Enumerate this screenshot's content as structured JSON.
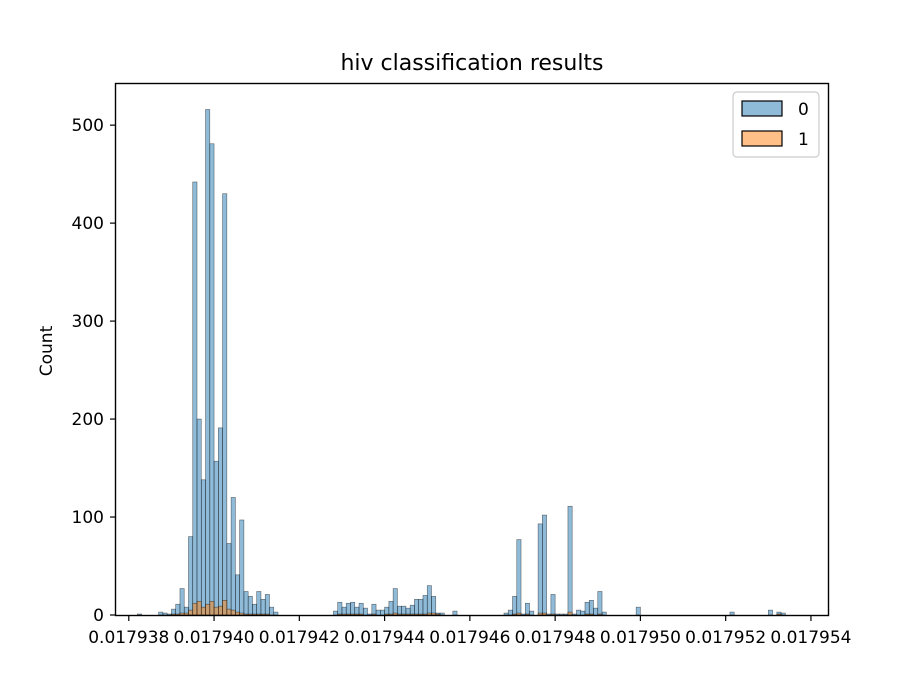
{
  "chart_data": {
    "type": "histogram",
    "title": "hiv classification results",
    "xlabel": "",
    "ylabel": "Count",
    "xlim": [
      0.0179377,
      0.0179544
    ],
    "ylim": [
      0,
      542
    ],
    "x_ticks": [
      0.017938,
      0.01794,
      0.017942,
      0.017944,
      0.017946,
      0.017948,
      0.01795,
      0.017952,
      0.017954
    ],
    "x_tick_labels": [
      "0.017938",
      "0.017940",
      "0.017942",
      "0.017944",
      "0.017946",
      "0.017948",
      "0.017950",
      "0.017952",
      "0.017954"
    ],
    "y_ticks": [
      0,
      100,
      200,
      300,
      400,
      500
    ],
    "y_tick_labels": [
      "0",
      "100",
      "200",
      "300",
      "400",
      "500"
    ],
    "bin_start": 0.0179378,
    "bin_width": 1e-07,
    "legend_position": "top-right",
    "legend": [
      {
        "label": "0",
        "color": "#1f77b4"
      },
      {
        "label": "1",
        "color": "#ff7f0e"
      }
    ],
    "series": [
      {
        "name": "0",
        "color": "#1f77b4",
        "values": [
          0,
          0,
          0,
          0,
          1,
          0,
          0,
          0,
          0,
          3,
          2,
          1,
          6,
          11,
          27,
          8,
          80,
          442,
          200,
          138,
          516,
          481,
          157,
          191,
          430,
          73,
          120,
          41,
          97,
          24,
          19,
          11,
          24,
          16,
          21,
          8,
          3,
          0,
          0,
          0,
          0,
          0,
          0,
          0,
          0,
          0,
          0,
          0,
          0,
          0,
          4,
          13,
          8,
          12,
          13,
          8,
          12,
          7,
          1,
          11,
          5,
          5,
          8,
          14,
          27,
          9,
          9,
          7,
          10,
          16,
          16,
          20,
          30,
          19,
          2,
          2,
          0,
          0,
          4,
          0,
          0,
          0,
          0,
          0,
          0,
          0,
          0,
          0,
          0,
          0,
          2,
          5,
          19,
          77,
          1,
          12,
          4,
          0,
          93,
          102,
          1,
          21,
          1,
          1,
          1,
          111,
          1,
          5,
          4,
          13,
          15,
          7,
          24,
          3,
          0,
          0,
          0,
          0,
          0,
          0,
          0,
          8,
          0,
          0,
          0,
          0,
          0,
          0,
          0,
          0,
          0,
          0,
          0,
          0,
          0,
          0,
          0,
          0,
          0,
          0,
          0,
          0,
          0,
          3,
          0,
          0,
          0,
          0,
          0,
          0,
          0,
          0,
          5,
          0,
          3,
          2
        ]
      },
      {
        "name": "1",
        "color": "#ff7f0e",
        "values": [
          0,
          0,
          0,
          0,
          0,
          0,
          0,
          0,
          0,
          0,
          0,
          0,
          1,
          1,
          2,
          2,
          5,
          12,
          14,
          8,
          11,
          14,
          8,
          9,
          15,
          6,
          5,
          3,
          2,
          1,
          1,
          1,
          1,
          1,
          1,
          0,
          0,
          0,
          0,
          0,
          0,
          0,
          0,
          0,
          0,
          0,
          0,
          0,
          0,
          0,
          0,
          1,
          1,
          1,
          1,
          1,
          1,
          0,
          0,
          1,
          0,
          0,
          1,
          1,
          2,
          1,
          1,
          1,
          1,
          1,
          1,
          1,
          2,
          2,
          1,
          0,
          0,
          0,
          0,
          0,
          0,
          0,
          0,
          0,
          0,
          0,
          0,
          0,
          0,
          0,
          0,
          0,
          1,
          2,
          0,
          1,
          0,
          0,
          2,
          2,
          0,
          1,
          0,
          0,
          0,
          3,
          0,
          0,
          0,
          1,
          1,
          0,
          1,
          0,
          0,
          0,
          0,
          0,
          0,
          0,
          0,
          0,
          0,
          0,
          0,
          0,
          0,
          0,
          0,
          0,
          0,
          0,
          0,
          0,
          0,
          0,
          0,
          0,
          0,
          0,
          0,
          0,
          0,
          0,
          0,
          0,
          0,
          0,
          0,
          0,
          0,
          0,
          0,
          0,
          1
        ]
      }
    ]
  }
}
